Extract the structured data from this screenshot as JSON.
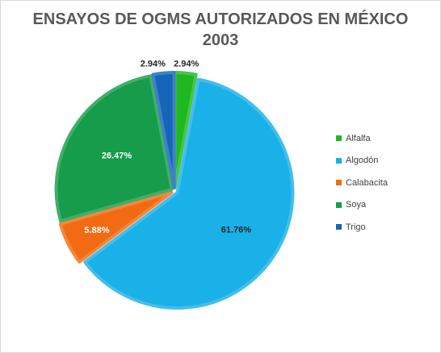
{
  "chart_data": {
    "type": "pie",
    "title": "ENSAYOS DE OGMS AUTORIZADOS EN MÉXICO",
    "subtitle": "2003",
    "categories": [
      "Alfalfa",
      "Algodón",
      "Calabacita",
      "Soya",
      "Trigo"
    ],
    "values": [
      2.94,
      61.76,
      5.88,
      26.47,
      2.94
    ],
    "labels": [
      "2.94%",
      "61.76%",
      "5.88%",
      "26.47%",
      "2.94%"
    ],
    "colors": [
      "#1fb81f",
      "#1ab0e8",
      "#f26b12",
      "#169c4a",
      "#1565b8"
    ],
    "label_colors": [
      "#262626",
      "#262626",
      "#ffffff",
      "#ffffff",
      "#262626"
    ],
    "legend_position": "right"
  }
}
